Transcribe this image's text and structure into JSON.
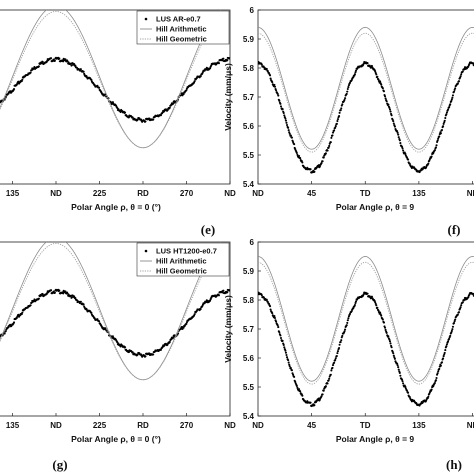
{
  "chart_data": [
    {
      "id": "e",
      "type": "line",
      "panel_label": "(e)",
      "xlabel": "Polar Angle ρ, θ = 0 (°)",
      "ylabel": "",
      "x_ticks": [
        "135",
        "ND",
        "225",
        "RD",
        "270",
        "ND"
      ],
      "x_tick_values": [
        135,
        180,
        225,
        270,
        315,
        360
      ],
      "xlim": [
        120,
        360
      ],
      "ylim": [
        5.4,
        6.0
      ],
      "grid": false,
      "legend_position": "top-right",
      "series": [
        {
          "name": "LUS AR-e0.7",
          "style": "dots",
          "color": "#000000",
          "mean": 5.725,
          "amplitude": 0.105,
          "period": 180,
          "peak_x": 180
        },
        {
          "name": "Hill Arithmetic",
          "style": "solid",
          "color": "#8c8c8c",
          "mean": 5.77,
          "amplitude": 0.245,
          "period": 180,
          "peak_x": 180
        },
        {
          "name": "Hill Geometric",
          "style": "dotted",
          "color": "#a0a0a0",
          "mean": 5.76,
          "amplitude": 0.235,
          "period": 180,
          "peak_x": 180
        }
      ]
    },
    {
      "id": "f",
      "type": "line",
      "panel_label": "(f)",
      "xlabel": "Polar Angle ρ, θ = 9",
      "ylabel": "Velocity (mm/μs)",
      "x_ticks": [
        "ND",
        "45",
        "TD",
        "135",
        "ND"
      ],
      "x_tick_values": [
        0,
        45,
        90,
        135,
        180
      ],
      "y_ticks": [
        "5.4",
        "5.5",
        "5.6",
        "5.7",
        "5.8",
        "5.9",
        "6"
      ],
      "y_tick_values": [
        5.4,
        5.5,
        5.6,
        5.7,
        5.8,
        5.9,
        6.0
      ],
      "xlim": [
        0,
        193
      ],
      "ylim": [
        5.4,
        6.0
      ],
      "grid": false,
      "series": [
        {
          "name": "LUS",
          "style": "dots",
          "color": "#000000",
          "mean": 5.63,
          "amplitude": 0.185,
          "period": 90,
          "peak_x": 0
        },
        {
          "name": "Hill Arithmetic",
          "style": "solid",
          "color": "#8c8c8c",
          "mean": 5.73,
          "amplitude": 0.21,
          "period": 90,
          "peak_x": 0
        },
        {
          "name": "Hill Geometric",
          "style": "dotted",
          "color": "#a0a0a0",
          "mean": 5.715,
          "amplitude": 0.205,
          "period": 90,
          "peak_x": 0
        }
      ]
    },
    {
      "id": "g",
      "type": "line",
      "panel_label": "(g)",
      "xlabel": "Polar Angle ρ, θ = 0 (°)",
      "ylabel": "",
      "x_ticks": [
        "135",
        "ND",
        "225",
        "RD",
        "270",
        "ND"
      ],
      "x_tick_values": [
        135,
        180,
        225,
        270,
        315,
        360
      ],
      "xlim": [
        120,
        360
      ],
      "ylim": [
        5.4,
        6.0
      ],
      "grid": false,
      "legend_position": "top-right",
      "series": [
        {
          "name": "LUS HT1200-e0.7",
          "style": "dots",
          "color": "#000000",
          "mean": 5.72,
          "amplitude": 0.11,
          "period": 180,
          "peak_x": 180
        },
        {
          "name": "Hill Arithmetic",
          "style": "solid",
          "color": "#8c8c8c",
          "mean": 5.77,
          "amplitude": 0.245,
          "period": 180,
          "peak_x": 180
        },
        {
          "name": "Hill Geometric",
          "style": "dotted",
          "color": "#a0a0a0",
          "mean": 5.76,
          "amplitude": 0.235,
          "period": 180,
          "peak_x": 180
        }
      ]
    },
    {
      "id": "h",
      "type": "line",
      "panel_label": "(h)",
      "xlabel": "Polar Angle ρ, θ = 9",
      "ylabel": "Velocity (mm/μs)",
      "x_ticks": [
        "ND",
        "45",
        "TD",
        "135",
        "ND"
      ],
      "x_tick_values": [
        0,
        45,
        90,
        135,
        180
      ],
      "y_ticks": [
        "5.4",
        "5.5",
        "5.6",
        "5.7",
        "5.8",
        "5.9",
        "6"
      ],
      "y_tick_values": [
        5.4,
        5.5,
        5.6,
        5.7,
        5.8,
        5.9,
        6.0
      ],
      "xlim": [
        0,
        193
      ],
      "ylim": [
        5.4,
        6.0
      ],
      "grid": false,
      "series": [
        {
          "name": "LUS",
          "style": "dots",
          "color": "#000000",
          "mean": 5.63,
          "amplitude": 0.19,
          "period": 90,
          "peak_x": 0
        },
        {
          "name": "Hill Arithmetic",
          "style": "solid",
          "color": "#8c8c8c",
          "mean": 5.735,
          "amplitude": 0.215,
          "period": 90,
          "peak_x": 0
        },
        {
          "name": "Hill Geometric",
          "style": "dotted",
          "color": "#a0a0a0",
          "mean": 5.72,
          "amplitude": 0.21,
          "period": 90,
          "peak_x": 0
        }
      ]
    }
  ]
}
